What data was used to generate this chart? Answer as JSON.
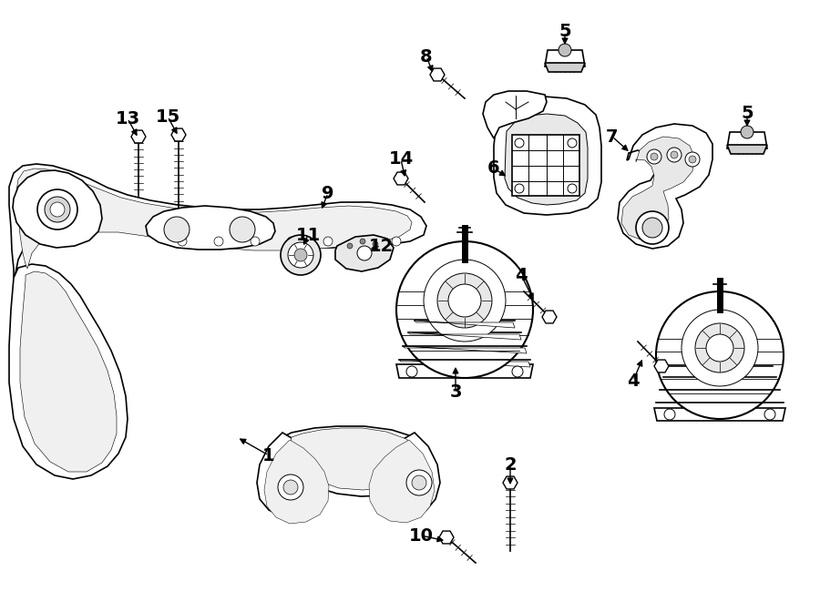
{
  "bg_color": "#ffffff",
  "line_color": "#000000",
  "figsize": [
    9.0,
    6.61
  ],
  "dpi": 100,
  "lw_main": 1.2,
  "lw_thin": 0.7,
  "label_fontsize": 14,
  "label_fontweight": "bold"
}
